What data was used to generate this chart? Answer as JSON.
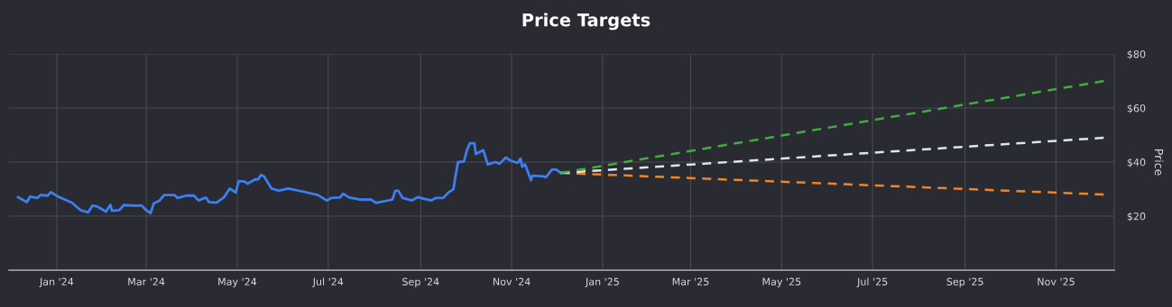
{
  "chart_data": {
    "type": "line",
    "title": "Price Targets",
    "ylabel": "Price",
    "xlim": [
      "2023-11-30",
      "2025-12-10"
    ],
    "ylim": [
      0,
      80
    ],
    "yticks": [
      {
        "value": 20,
        "label": "$20"
      },
      {
        "value": 40,
        "label": "$40"
      },
      {
        "value": 60,
        "label": "$60"
      },
      {
        "value": 80,
        "label": "$80"
      }
    ],
    "xticks": [
      {
        "value": "2024-01-01",
        "label": "Jan '24"
      },
      {
        "value": "2024-03-01",
        "label": "Mar '24"
      },
      {
        "value": "2024-05-01",
        "label": "May '24"
      },
      {
        "value": "2024-07-01",
        "label": "Jul '24"
      },
      {
        "value": "2024-09-01",
        "label": "Sep '24"
      },
      {
        "value": "2024-11-01",
        "label": "Nov '24"
      },
      {
        "value": "2025-01-01",
        "label": "Jan '25"
      },
      {
        "value": "2025-03-01",
        "label": "Mar '25"
      },
      {
        "value": "2025-05-01",
        "label": "May '25"
      },
      {
        "value": "2025-07-01",
        "label": "Jul '25"
      },
      {
        "value": "2025-09-01",
        "label": "Sep '25"
      },
      {
        "value": "2025-11-01",
        "label": "Nov '25"
      }
    ],
    "grid": true,
    "series": [
      {
        "color": "#3b7ff0",
        "line_style": "solid",
        "x": [
          "2023-12-06",
          "2023-12-12",
          "2023-12-14",
          "2023-12-19",
          "2023-12-21",
          "2023-12-26",
          "2023-12-28",
          "2024-01-02",
          "2024-01-11",
          "2024-01-17",
          "2024-01-22",
          "2024-01-25",
          "2024-01-28",
          "2024-02-03",
          "2024-02-06",
          "2024-02-07",
          "2024-02-12",
          "2024-02-15",
          "2024-02-21",
          "2024-02-27",
          "2024-03-01",
          "2024-03-04",
          "2024-03-06",
          "2024-03-10",
          "2024-03-13",
          "2024-03-20",
          "2024-03-22",
          "2024-03-28",
          "2024-04-02",
          "2024-04-05",
          "2024-04-10",
          "2024-04-12",
          "2024-04-17",
          "2024-04-22",
          "2024-04-26",
          "2024-04-30",
          "2024-05-02",
          "2024-05-06",
          "2024-05-08",
          "2024-05-13",
          "2024-05-15",
          "2024-05-17",
          "2024-05-19",
          "2024-05-24",
          "2024-05-29",
          "2024-06-04",
          "2024-06-14",
          "2024-06-24",
          "2024-06-30",
          "2024-07-03",
          "2024-07-09",
          "2024-07-11",
          "2024-07-15",
          "2024-07-23",
          "2024-07-30",
          "2024-08-02",
          "2024-08-13",
          "2024-08-15",
          "2024-08-17",
          "2024-08-20",
          "2024-08-26",
          "2024-08-30",
          "2024-09-08",
          "2024-09-11",
          "2024-09-16",
          "2024-09-20",
          "2024-09-23",
          "2024-09-24",
          "2024-09-26",
          "2024-09-30",
          "2024-10-02",
          "2024-10-04",
          "2024-10-07",
          "2024-10-08",
          "2024-10-13",
          "2024-10-16",
          "2024-10-21",
          "2024-10-24",
          "2024-10-28",
          "2024-10-31",
          "2024-11-05",
          "2024-11-07",
          "2024-11-08",
          "2024-11-10",
          "2024-11-14",
          "2024-11-15",
          "2024-11-22",
          "2024-11-24",
          "2024-11-28",
          "2024-12-01",
          "2024-12-04"
        ],
        "values": [
          27.0,
          25.2,
          27.2,
          26.7,
          27.8,
          27.6,
          28.9,
          27.2,
          25.0,
          22.2,
          21.4,
          23.9,
          23.6,
          21.7,
          24.2,
          22.0,
          22.2,
          24.1,
          23.9,
          23.9,
          22.2,
          21.1,
          24.7,
          25.8,
          27.8,
          27.8,
          26.7,
          27.6,
          27.6,
          25.8,
          26.9,
          25.2,
          25.0,
          26.9,
          30.2,
          28.7,
          33.0,
          32.8,
          32.0,
          33.6,
          33.6,
          35.3,
          34.7,
          30.2,
          29.4,
          30.2,
          29.1,
          27.8,
          25.8,
          26.7,
          26.9,
          28.3,
          26.9,
          26.1,
          26.1,
          24.9,
          26.1,
          29.4,
          29.4,
          26.7,
          25.8,
          27.0,
          25.8,
          26.7,
          26.7,
          28.9,
          30.0,
          33.7,
          40.0,
          40.2,
          44.4,
          47.0,
          47.0,
          43.0,
          44.4,
          39.1,
          40.0,
          39.4,
          41.7,
          40.6,
          39.7,
          41.3,
          38.3,
          39.1,
          33.3,
          35.0,
          34.7,
          34.4,
          37.2,
          37.2,
          35.9
        ]
      },
      {
        "color": "#3fae3f",
        "line_style": "dashed",
        "x": [
          "2024-12-04",
          "2025-12-03"
        ],
        "values": [
          36,
          70
        ]
      },
      {
        "color": "#dfe4f4",
        "line_style": "dashed",
        "x": [
          "2024-12-04",
          "2025-12-03"
        ],
        "values": [
          36,
          49
        ]
      },
      {
        "color": "#f4841e",
        "line_style": "dashed",
        "x": [
          "2024-12-04",
          "2025-12-03"
        ],
        "values": [
          36,
          28
        ]
      }
    ]
  }
}
